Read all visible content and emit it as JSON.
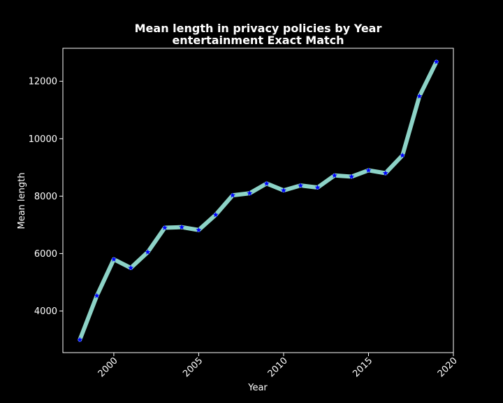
{
  "chart_data": {
    "type": "line",
    "title": "Mean length in privacy policies by Year",
    "subtitle": "entertainment Exact Match",
    "xlabel": "Year",
    "ylabel": "Mean length",
    "xlim": [
      1997,
      2020
    ],
    "ylim": [
      2550,
      13150
    ],
    "x_ticks": [
      2000,
      2005,
      2010,
      2015,
      2020
    ],
    "y_ticks": [
      4000,
      6000,
      8000,
      10000,
      12000
    ],
    "grid": false,
    "background_color": "#000000",
    "line_color": "#8dd3c7",
    "marker": "star",
    "marker_color": "#0000ff",
    "x": [
      1998,
      1999,
      2000,
      2001,
      2002,
      2003,
      2004,
      2005,
      2006,
      2007,
      2008,
      2009,
      2010,
      2011,
      2012,
      2013,
      2014,
      2015,
      2016,
      2017,
      2018,
      2019
    ],
    "y": [
      3000,
      4530,
      5800,
      5500,
      6050,
      6900,
      6920,
      6820,
      7350,
      8030,
      8100,
      8440,
      8200,
      8370,
      8300,
      8720,
      8680,
      8900,
      8800,
      9420,
      11480,
      12680
    ]
  }
}
